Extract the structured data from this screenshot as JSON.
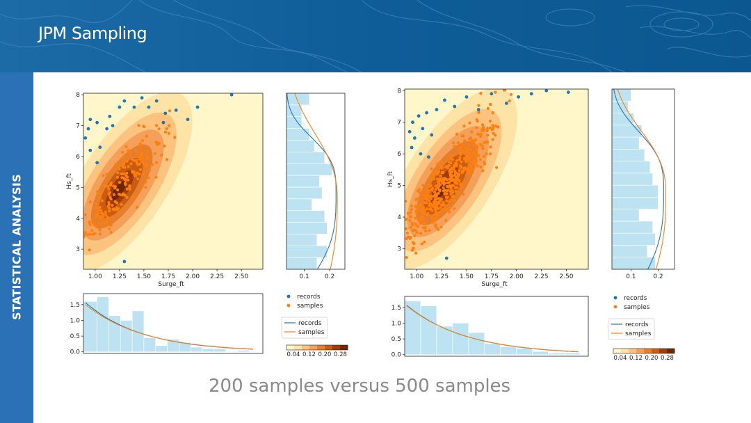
{
  "slide": {
    "title": "JPM Sampling",
    "side_label": "STATISTICAL ANALYSIS",
    "caption": "200 samples versus 500 samples"
  },
  "colors": {
    "banner": "#0d5b93",
    "side_bar": "#2a71b5",
    "records": "#1f77b4",
    "samples": "#ff7f0e",
    "hist_fill": "#bde3f2",
    "contour_levels": [
      "#fff6c9",
      "#fde3a5",
      "#fbc37e",
      "#f5a05a",
      "#e67e2a",
      "#c85d12",
      "#9e3d07",
      "#6e2605"
    ]
  },
  "chart_data": [
    {
      "type": "scatter",
      "panel": "200 samples",
      "xlabel": "Surge_ft",
      "ylabel": "Hs_ft",
      "xlim": [
        0.88,
        2.72
      ],
      "ylim": [
        2.35,
        8.05
      ],
      "xticks": [
        "1.00",
        "1.25",
        "1.50",
        "1.75",
        "2.00",
        "2.25",
        "2.50"
      ],
      "yticks": [
        "3",
        "4",
        "5",
        "6",
        "7",
        "8"
      ],
      "density_mean": [
        1.22,
        4.85
      ],
      "records": [
        [
          0.9,
          6.6
        ],
        [
          0.93,
          6.9
        ],
        [
          0.95,
          7.2
        ],
        [
          1.02,
          7.1
        ],
        [
          1.05,
          6.3
        ],
        [
          1.12,
          6.9
        ],
        [
          1.15,
          7.3
        ],
        [
          1.18,
          7.0
        ],
        [
          1.25,
          7.6
        ],
        [
          1.3,
          7.8
        ],
        [
          1.4,
          7.6
        ],
        [
          1.48,
          7.9
        ],
        [
          1.55,
          7.6
        ],
        [
          1.63,
          7.8
        ],
        [
          1.72,
          7.4
        ],
        [
          1.83,
          7.5
        ],
        [
          1.7,
          7.1
        ],
        [
          1.95,
          7.2
        ],
        [
          2.05,
          7.6
        ],
        [
          2.4,
          8.0
        ],
        [
          0.95,
          6.2
        ],
        [
          1.02,
          5.8
        ],
        [
          1.3,
          2.6
        ]
      ],
      "marginal_x": {
        "bins": [
          0.88,
          1.02,
          1.14,
          1.26,
          1.38,
          1.5,
          1.62,
          1.74,
          1.86,
          1.98,
          2.1,
          2.22,
          2.34,
          2.46,
          2.58,
          2.7
        ],
        "heights": [
          1.6,
          1.75,
          1.15,
          1.0,
          1.3,
          0.45,
          0.2,
          0.4,
          0.3,
          0.15,
          0.1,
          0.1,
          0.0,
          0.05,
          0.0
        ],
        "ylim": [
          -0.05,
          1.85
        ],
        "yticks": [
          "0.0",
          "0.5",
          "1.0",
          "1.5"
        ],
        "fit_records": {
          "a": 1.62,
          "b": 1.37
        },
        "fit_samples": {
          "a": 1.55,
          "b": 1.32
        }
      },
      "marginal_y": {
        "bins": [
          2.35,
          2.73,
          3.11,
          3.49,
          3.87,
          4.25,
          4.63,
          5.01,
          5.39,
          5.77,
          6.15,
          6.53,
          6.91,
          7.29,
          7.67,
          8.05
        ],
        "widths": [
          0.15,
          0.19,
          0.15,
          0.19,
          0.18,
          0.13,
          0.17,
          0.16,
          0.21,
          0.18,
          0.14,
          0.12,
          0.09,
          0.09,
          0.12
        ],
        "xlim": [
          0.03,
          0.26
        ],
        "xticks": [
          "0.1",
          "0.2"
        ],
        "fit_records": {
          "k": 0.225,
          "y0": 4.85,
          "s": 1.65,
          "p": 3.2
        },
        "fit_samples": {
          "k": 0.23,
          "y0": 4.6,
          "s": 2.1,
          "p": 2.4
        }
      },
      "legend_scatter": [
        "records",
        "samples"
      ],
      "legend_lines": [
        "records",
        "samples"
      ],
      "colorbar_ticks": [
        "0.04",
        "0.12",
        "0.20",
        "0.28"
      ]
    },
    {
      "type": "scatter",
      "panel": "500 samples",
      "xlabel": "Surge_ft",
      "ylabel": "Hs_ft",
      "xlim": [
        0.88,
        2.72
      ],
      "ylim": [
        2.35,
        8.05
      ],
      "xticks": [
        "1.00",
        "1.25",
        "1.50",
        "1.75",
        "2.00",
        "2.25",
        "2.50"
      ],
      "yticks": [
        "3",
        "4",
        "5",
        "6",
        "7",
        "8"
      ],
      "density_mean": [
        1.25,
        4.9
      ],
      "records": [
        [
          0.93,
          6.7
        ],
        [
          0.96,
          7.0
        ],
        [
          0.98,
          6.5
        ],
        [
          1.02,
          7.2
        ],
        [
          1.06,
          6.8
        ],
        [
          1.1,
          7.3
        ],
        [
          1.15,
          6.6
        ],
        [
          1.2,
          7.4
        ],
        [
          1.28,
          7.7
        ],
        [
          1.38,
          7.5
        ],
        [
          1.5,
          7.8
        ],
        [
          1.62,
          7.4
        ],
        [
          1.75,
          7.9
        ],
        [
          1.9,
          7.6
        ],
        [
          2.02,
          7.8
        ],
        [
          2.15,
          7.9
        ],
        [
          2.3,
          8.0
        ],
        [
          2.52,
          7.95
        ],
        [
          0.95,
          6.2
        ],
        [
          1.04,
          6.0
        ],
        [
          1.3,
          2.7
        ],
        [
          1.12,
          5.9
        ]
      ],
      "marginal_x": {
        "bins": [
          0.88,
          1.04,
          1.2,
          1.36,
          1.52,
          1.68,
          1.84,
          2.0,
          2.16,
          2.32,
          2.48,
          2.64
        ],
        "heights": [
          1.7,
          1.55,
          0.9,
          1.0,
          0.7,
          0.35,
          0.25,
          0.2,
          0.1,
          0.05,
          0.05
        ],
        "ylim": [
          -0.05,
          1.85
        ],
        "yticks": [
          "0.0",
          "0.5",
          "1.0",
          "1.5"
        ],
        "fit_records": {
          "a": 1.62,
          "b": 1.33
        },
        "fit_samples": {
          "a": 1.6,
          "b": 1.31
        }
      },
      "marginal_y": {
        "bins": [
          2.35,
          2.73,
          3.11,
          3.49,
          3.87,
          4.25,
          4.63,
          5.01,
          5.39,
          5.77,
          6.15,
          6.53,
          6.91,
          7.29,
          7.67,
          8.05
        ],
        "widths": [
          0.19,
          0.16,
          0.19,
          0.18,
          0.13,
          0.2,
          0.2,
          0.18,
          0.17,
          0.15,
          0.13,
          0.14,
          0.11,
          0.09,
          0.1
        ],
        "xlim": [
          0.03,
          0.26
        ],
        "xticks": [
          "0.1",
          "0.2"
        ],
        "fit_records": {
          "k": 0.22,
          "y0": 4.85,
          "s": 1.75,
          "p": 3.0
        },
        "fit_samples": {
          "k": 0.228,
          "y0": 4.7,
          "s": 1.95,
          "p": 2.6
        }
      },
      "legend_scatter": [
        "records",
        "samples"
      ],
      "legend_lines": [
        "records",
        "samples"
      ],
      "colorbar_ticks": [
        "0.04",
        "0.12",
        "0.20",
        "0.28"
      ]
    }
  ]
}
